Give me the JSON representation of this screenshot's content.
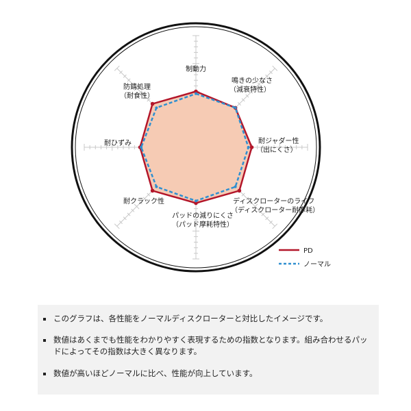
{
  "chart_data": {
    "type": "radar",
    "axes": [
      {
        "label": [
          "制動力"
        ]
      },
      {
        "label": [
          "鳴きの少なさ",
          "（減衰特性）"
        ]
      },
      {
        "label": [
          "耐ジャダー性",
          "（出にくさ）"
        ]
      },
      {
        "label": [
          "ディスクローターのライフ",
          "（ディスクローター耐摩耗）"
        ]
      },
      {
        "label": [
          "パッドの減りにくさ",
          "（パッド摩耗特性）"
        ]
      },
      {
        "label": [
          "耐クラック性"
        ]
      },
      {
        "label": [
          "耐ひずみ"
        ]
      },
      {
        "label": [
          "防錆処理",
          "（耐食性）"
        ]
      }
    ],
    "range": [
      0,
      20
    ],
    "grid": true,
    "legend": "bottom-right",
    "series": [
      {
        "name": "PD",
        "values": [
          10,
          10,
          10,
          11,
          10,
          11,
          10,
          11
        ],
        "color": "#b3162a",
        "fill": "#f6cbb4",
        "style": "solid"
      },
      {
        "name": "ノーマル",
        "values": [
          9.6,
          10,
          9.4,
          10,
          9.6,
          10,
          9.8,
          10
        ],
        "color": "#2f8fd0",
        "style": "dashed"
      }
    ]
  },
  "notes": [
    "このグラフは、各性能をノーマルディスクローターと対比したイメージです。",
    "数値はあくまでも性能をわかりやすく表現するための指数となります。組み合わせるパッドによってその指数は大きく異なります。",
    "数値が高いほどノーマルに比べ、性能が向上しています。"
  ]
}
